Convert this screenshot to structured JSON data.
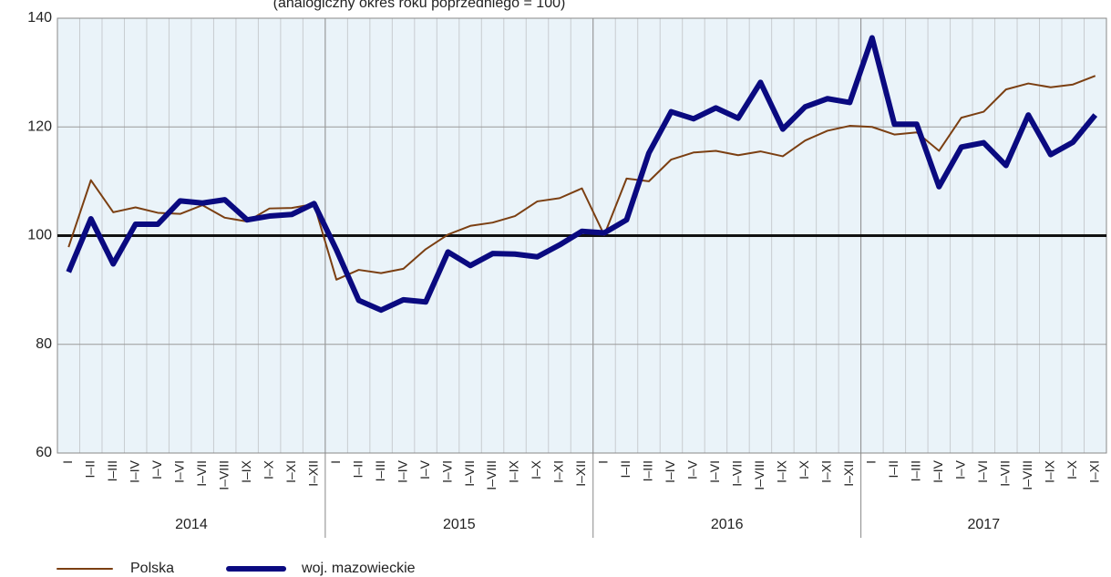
{
  "chart_data": {
    "type": "line",
    "subtitle": "(analogiczny okres roku poprzedniego = 100)",
    "categories": [
      "I",
      "I–II",
      "I–III",
      "I–IV",
      "I–V",
      "I–VI",
      "I–VII",
      "I–VIII",
      "I–IX",
      "I–X",
      "I–XI",
      "I–XII",
      "I",
      "I–II",
      "I–III",
      "I–IV",
      "I–V",
      "I–VI",
      "I–VII",
      "I–VIII",
      "I–IX",
      "I–X",
      "I–XI",
      "I–XII",
      "I",
      "I–II",
      "I–III",
      "I–IV",
      "I–V",
      "I–VI",
      "I–VII",
      "I–VIII",
      "I–IX",
      "I–X",
      "I–XI",
      "I–XII",
      "I",
      "I–II",
      "I–III",
      "I–IV",
      "I–V",
      "I–VI",
      "I–VII",
      "I–VIII",
      "I–IX",
      "I–X",
      "I–XI"
    ],
    "years": [
      "2014",
      "2015",
      "2016",
      "2017"
    ],
    "series": [
      {
        "name": "Polska",
        "color": "#7b3f12",
        "width": 2,
        "values": [
          97.9,
          110.2,
          104.3,
          105.2,
          104.2,
          104.0,
          105.6,
          103.3,
          102.6,
          105.0,
          105.1,
          105.8,
          91.9,
          93.7,
          93.1,
          93.9,
          97.5,
          100.2,
          101.8,
          102.4,
          103.6,
          106.3,
          106.9,
          108.7,
          100.1,
          110.5,
          110.0,
          114.0,
          115.3,
          115.6,
          114.8,
          115.5,
          114.6,
          117.5,
          119.3,
          120.2,
          120.0,
          118.6,
          119.0,
          115.6,
          121.7,
          122.8,
          126.9,
          128.0,
          127.3,
          127.8,
          129.4
        ]
      },
      {
        "name": "woj. mazowieckie",
        "color": "#0a0a80",
        "width": 6,
        "values": [
          93.3,
          103.1,
          94.8,
          102.1,
          102.1,
          106.4,
          106.0,
          106.6,
          102.9,
          103.6,
          103.9,
          105.9,
          97.4,
          88.1,
          86.3,
          88.2,
          87.8,
          97.0,
          94.5,
          96.7,
          96.6,
          96.1,
          98.3,
          100.8,
          100.5,
          102.9,
          115.2,
          122.8,
          121.5,
          123.5,
          121.6,
          128.2,
          119.6,
          123.7,
          125.2,
          124.5,
          136.4,
          120.5,
          120.5,
          109.0,
          116.3,
          117.1,
          112.9,
          122.2,
          114.9,
          117.2,
          122.2
        ]
      }
    ],
    "ylim": [
      60,
      140
    ],
    "yticks": [
      60,
      80,
      100,
      120,
      140
    ],
    "grid": true,
    "reference_line": 100,
    "legend": "bottom-left"
  }
}
